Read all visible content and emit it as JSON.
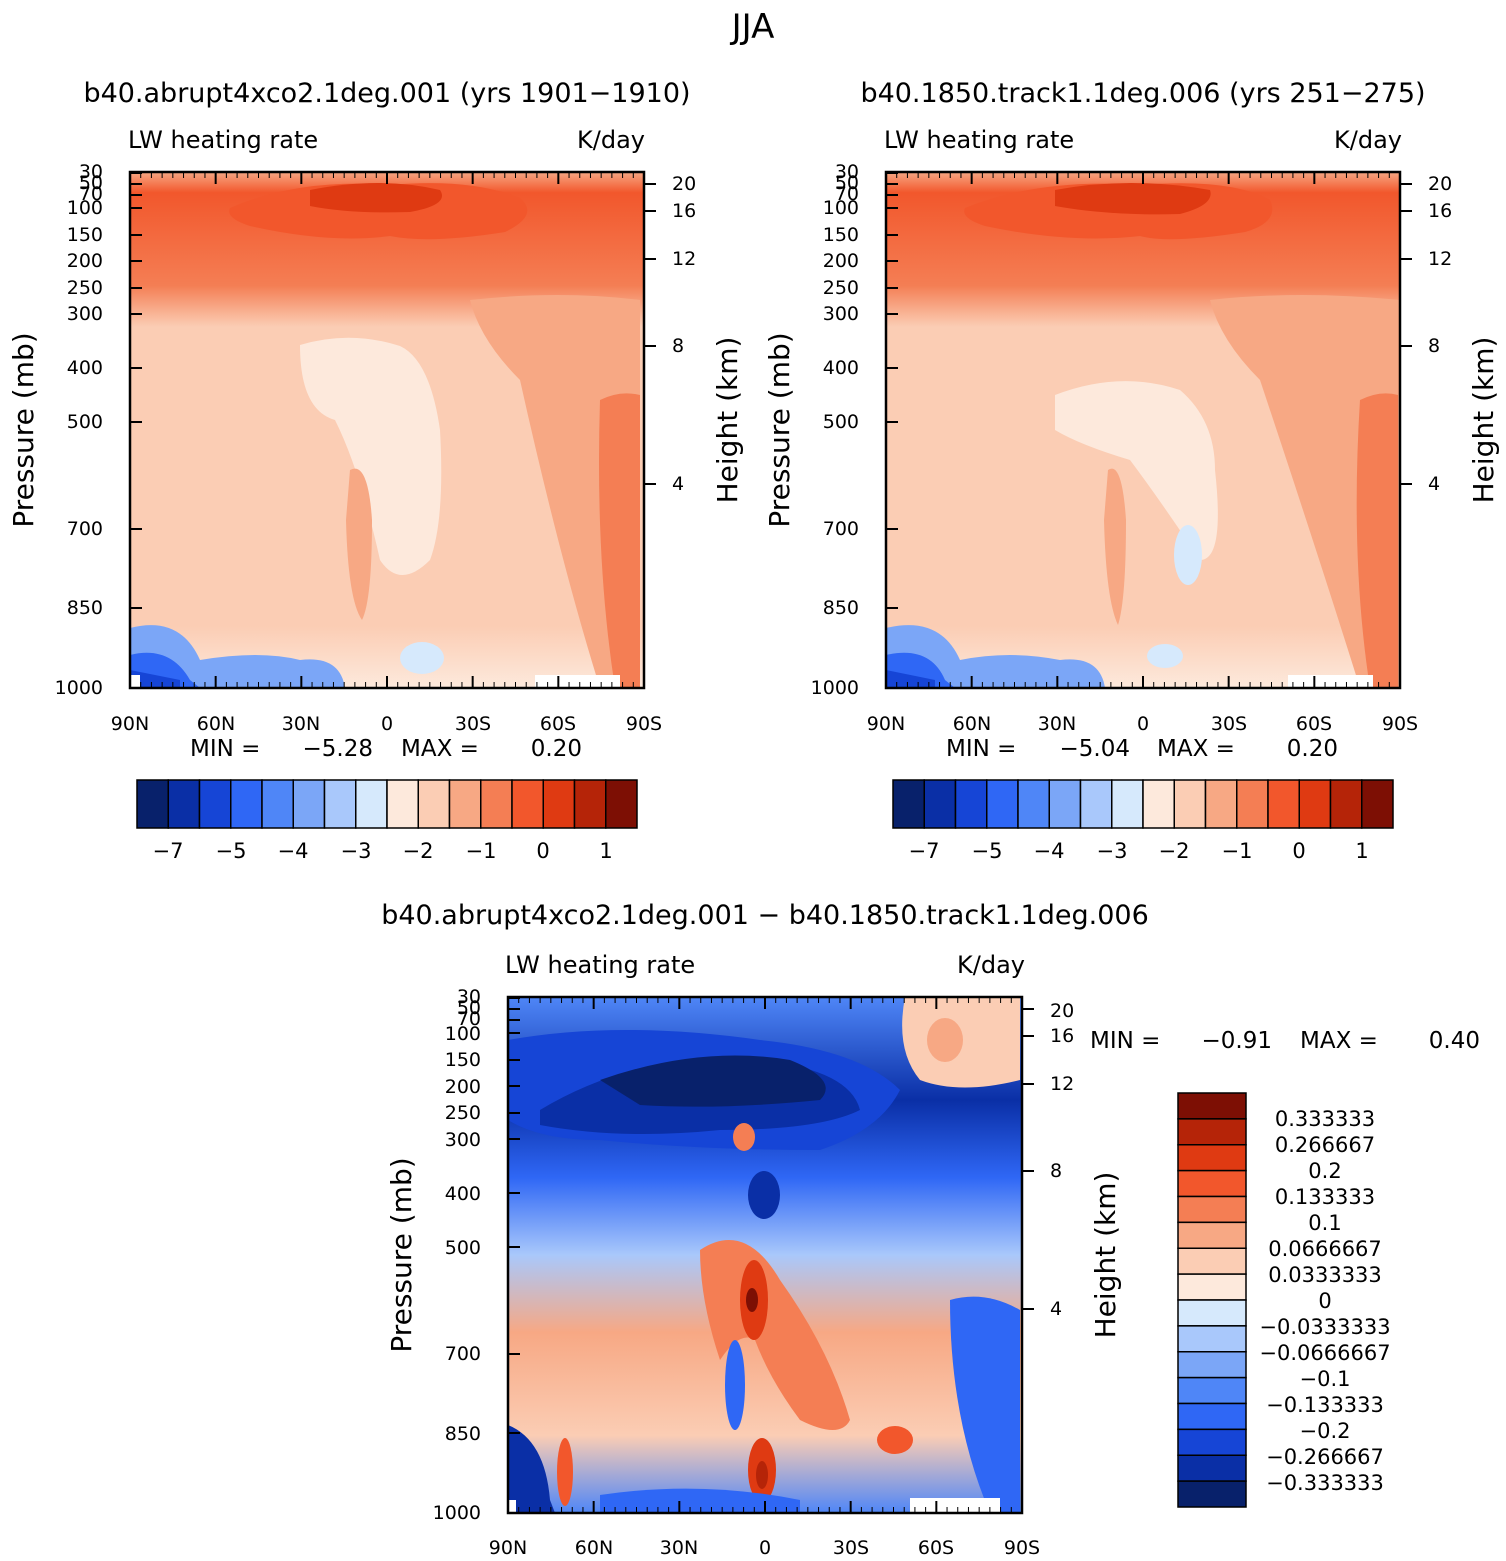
{
  "figure_title": "JJA",
  "colors": {
    "left_colorbar": [
      "#08216b",
      "#0a2fa6",
      "#1645d6",
      "#2f67f5",
      "#4f86f7",
      "#7ba6f7",
      "#a9c8fb",
      "#d6e9fc",
      "#fde9dc",
      "#fbcdb4",
      "#f7a884",
      "#f47e54",
      "#f2572c",
      "#df3a12",
      "#b52408",
      "#7d0f04"
    ],
    "right_colorbar": [
      "#08216b",
      "#0a2fa6",
      "#1645d6",
      "#2f67f5",
      "#4f86f7",
      "#7ba6f7",
      "#a9c8fb",
      "#d6e9fc",
      "#fde9dc",
      "#fbcdb4",
      "#f7a884",
      "#f47e54",
      "#f2572c",
      "#df3a12",
      "#b52408",
      "#7d0f04"
    ],
    "diff_colorbar": [
      "#7d0f04",
      "#b52408",
      "#df3a12",
      "#f2572c",
      "#f47e54",
      "#f7a884",
      "#fbcdb4",
      "#fde9dc",
      "#d6e9fc",
      "#a9c8fb",
      "#7ba6f7",
      "#4f86f7",
      "#2f67f5",
      "#1645d6",
      "#0a2fa6",
      "#08216b"
    ]
  },
  "chart_data": [
    {
      "id": "panel-a",
      "type": "contour",
      "title": "b40.abrupt4xco2.1deg.001 (yrs 1901-1910)",
      "left_label": "LW heating rate",
      "right_label": "K/day",
      "xlabel": "",
      "ylabel": "Pressure (mb)",
      "ylabel_right": "Height (km)",
      "x_ticks": [
        "90N",
        "60N",
        "30N",
        "0",
        "30S",
        "60S",
        "90S"
      ],
      "y_ticks": [
        "30",
        "50",
        "70",
        "100",
        "150",
        "200",
        "250",
        "300",
        "400",
        "500",
        "700",
        "850",
        "1000"
      ],
      "height_ticks": [
        "20",
        "16",
        "12",
        "8",
        "4"
      ],
      "min_label": "MIN =",
      "min_value": "-5.28",
      "max_label": "MAX =",
      "max_value": "0.20",
      "colorbar_labels": [
        "-7",
        "-5",
        "-4",
        "-3",
        "-2",
        "-1",
        "0",
        "1"
      ]
    },
    {
      "id": "panel-b",
      "type": "contour",
      "title": "b40.1850.track1.1deg.006 (yrs 251-275)",
      "left_label": "LW heating rate",
      "right_label": "K/day",
      "xlabel": "",
      "ylabel": "Pressure (mb)",
      "ylabel_right": "Height (km)",
      "x_ticks": [
        "90N",
        "60N",
        "30N",
        "0",
        "30S",
        "60S",
        "90S"
      ],
      "y_ticks": [
        "30",
        "50",
        "70",
        "100",
        "150",
        "200",
        "250",
        "300",
        "400",
        "500",
        "700",
        "850",
        "1000"
      ],
      "height_ticks": [
        "20",
        "16",
        "12",
        "8",
        "4"
      ],
      "min_label": "MIN =",
      "min_value": "-5.04",
      "max_label": "MAX =",
      "max_value": "0.20",
      "colorbar_labels": [
        "-7",
        "-5",
        "-4",
        "-3",
        "-2",
        "-1",
        "0",
        "1"
      ]
    },
    {
      "id": "panel-diff",
      "type": "contour",
      "title": "b40.abrupt4xco2.1deg.001 - b40.1850.track1.1deg.006",
      "left_label": "LW heating rate",
      "right_label": "K/day",
      "xlabel": "",
      "ylabel": "Pressure (mb)",
      "ylabel_right": "Height (km)",
      "x_ticks": [
        "90N",
        "60N",
        "30N",
        "0",
        "30S",
        "60S",
        "90S"
      ],
      "y_ticks": [
        "30",
        "50",
        "70",
        "100",
        "150",
        "200",
        "250",
        "300",
        "400",
        "500",
        "700",
        "850",
        "1000"
      ],
      "height_ticks": [
        "20",
        "16",
        "12",
        "8",
        "4"
      ],
      "min_label": "MIN =",
      "min_value": "-0.91",
      "max_label": "MAX =",
      "max_value": "0.40",
      "colorbar_labels": [
        "0.333333",
        "0.266667",
        "0.2",
        "0.133333",
        "0.1",
        "0.0666667",
        "0.0333333",
        "0",
        "-0.0333333",
        "-0.0666667",
        "-0.1",
        "-0.133333",
        "-0.2",
        "-0.266667",
        "-0.333333"
      ]
    }
  ]
}
